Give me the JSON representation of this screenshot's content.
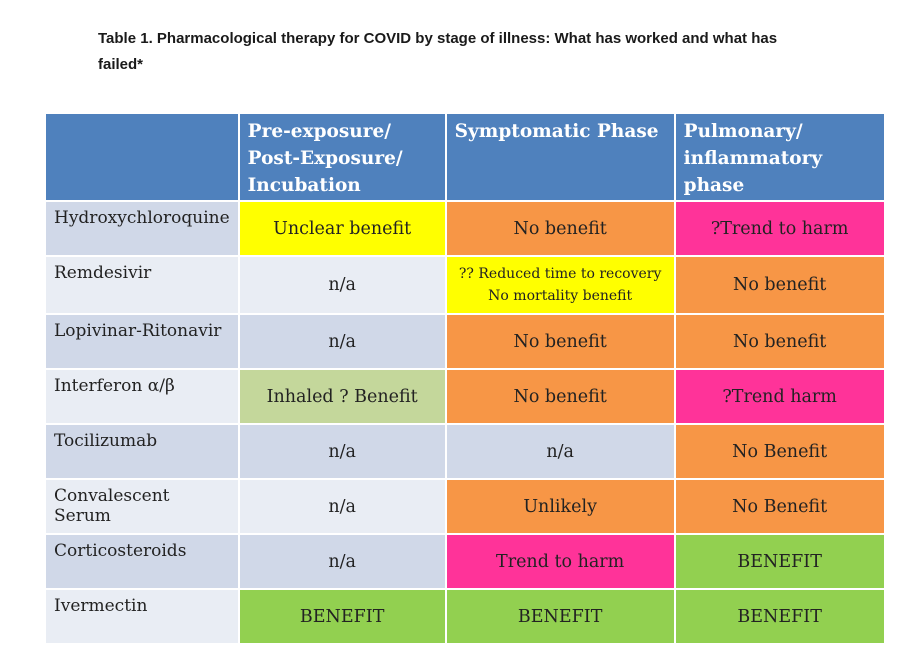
{
  "caption": "Table 1. Pharmacological therapy for COVID by stage of illness: What has worked and what has failed*",
  "colors": {
    "header_blue": "#4f81bd",
    "row_dark": "#d0d8e8",
    "row_light": "#e9edf4",
    "yellow": "#ffff00",
    "orange": "#f79646",
    "pink": "#ff3399",
    "green": "#92d050",
    "pale_green": "#c4d79b"
  },
  "headers": [
    "",
    "Pre-exposure/ Post-Exposure/ Incubation",
    "Symptomatic Phase",
    "Pulmonary/ inflammatory phase"
  ],
  "rows": [
    {
      "drug": "Hydroxychloroquine",
      "cells": [
        {
          "text": "Unclear benefit",
          "color": "yellow"
        },
        {
          "text": "No benefit",
          "color": "orange"
        },
        {
          "text": "?Trend to harm",
          "color": "pink"
        }
      ]
    },
    {
      "drug": "Remdesivir",
      "cells": [
        {
          "text": "n/a",
          "color": "row"
        },
        {
          "text": "?? Reduced time to recovery",
          "text2": "No mortality benefit",
          "color": "yellow"
        },
        {
          "text": "No benefit",
          "color": "orange"
        }
      ]
    },
    {
      "drug": "Lopivinar-Ritonavir",
      "cells": [
        {
          "text": "n/a",
          "color": "row"
        },
        {
          "text": "No benefit",
          "color": "orange"
        },
        {
          "text": "No benefit",
          "color": "orange"
        }
      ]
    },
    {
      "drug": "Interferon α/β",
      "cells": [
        {
          "text": "Inhaled ? Benefit",
          "color": "pale_green"
        },
        {
          "text": "No benefit",
          "color": "orange"
        },
        {
          "text": "?Trend harm",
          "color": "pink"
        }
      ]
    },
    {
      "drug": "Tocilizumab",
      "cells": [
        {
          "text": "n/a",
          "color": "row"
        },
        {
          "text": "n/a",
          "color": "row"
        },
        {
          "text": "No Benefit",
          "color": "orange"
        }
      ]
    },
    {
      "drug": "Convalescent Serum",
      "cells": [
        {
          "text": "n/a",
          "color": "row"
        },
        {
          "text": "Unlikely",
          "color": "orange"
        },
        {
          "text": "No Benefit",
          "color": "orange"
        }
      ]
    },
    {
      "drug": "Corticosteroids",
      "cells": [
        {
          "text": "n/a",
          "color": "row"
        },
        {
          "text": "Trend to harm",
          "color": "pink"
        },
        {
          "text": "BENEFIT",
          "color": "green"
        }
      ]
    },
    {
      "drug": "Ivermectin",
      "cells": [
        {
          "text": "BENEFIT",
          "color": "green"
        },
        {
          "text": "BENEFIT",
          "color": "green"
        },
        {
          "text": "BENEFIT",
          "color": "green"
        }
      ]
    }
  ]
}
